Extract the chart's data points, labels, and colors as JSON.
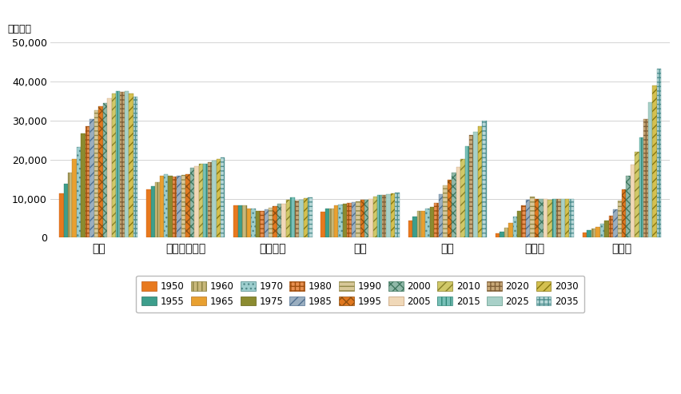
{
  "cities": [
    "東京",
    "ニューヨーク",
    "ロンドン",
    "パリ",
    "上海",
    "ソウル",
    "デリー"
  ],
  "years": [
    1950,
    1955,
    1960,
    1965,
    1970,
    1975,
    1980,
    1985,
    1990,
    1995,
    2000,
    2005,
    2010,
    2015,
    2020,
    2025,
    2030,
    2035
  ],
  "values": {
    "東京": [
      11274,
      13750,
      16679,
      20234,
      23298,
      26615,
      28549,
      30300,
      32530,
      33587,
      34450,
      35622,
      36834,
      37468,
      37400,
      37468,
      36968,
      36022
    ],
    "ニューヨーク": [
      12338,
      13219,
      14164,
      15798,
      16191,
      15880,
      15601,
      15755,
      16087,
      16332,
      17813,
      18351,
      18897,
      18823,
      19216,
      19767,
      20091,
      20620
    ],
    "ロンドン": [
      8361,
      8247,
      8196,
      7518,
      7429,
      6910,
      6805,
      7150,
      7651,
      8089,
      8616,
      8607,
      9787,
      10228,
      9540,
      9800,
      10100,
      10230
    ],
    "パリ": [
      6700,
      7369,
      7490,
      8195,
      8535,
      8630,
      8823,
      9126,
      9319,
      9692,
      9736,
      9926,
      10620,
      10901,
      11017,
      11213,
      11418,
      11587
    ],
    "上海": [
      4301,
      5406,
      6900,
      6915,
      7547,
      7780,
      8930,
      11160,
      13452,
      14740,
      16738,
      18150,
      20218,
      23390,
      26317,
      27058,
      28516,
      29867
    ],
    "ソウル": [
      1021,
      1574,
      2445,
      3793,
      5310,
      6808,
      8364,
      9640,
      10520,
      9963,
      9895,
      9820,
      9796,
      9888,
      9963,
      9967,
      9961,
      9887
    ],
    "デリー": [
      1369,
      1849,
      2275,
      2782,
      3531,
      4426,
      5558,
      7206,
      9421,
      12441,
      15925,
      18681,
      21935,
      25735,
      30291,
      34700,
      38939,
      43300
    ]
  },
  "year_styles": {
    "1950": {
      "color": "#E8791E",
      "hatch": "",
      "edgecolor": "#c05810"
    },
    "1955": {
      "color": "#3D9E8C",
      "hatch": "",
      "edgecolor": "#2a7060"
    },
    "1960": {
      "color": "#C8B87A",
      "hatch": "|||",
      "edgecolor": "#888040"
    },
    "1965": {
      "color": "#E8A030",
      "hatch": "===",
      "edgecolor": "#B07020"
    },
    "1970": {
      "color": "#9ECECE",
      "hatch": "...",
      "edgecolor": "#508888"
    },
    "1975": {
      "color": "#8B8B30",
      "hatch": "",
      "edgecolor": "#606010"
    },
    "1980": {
      "color": "#E89050",
      "hatch": "+++",
      "edgecolor": "#A05010"
    },
    "1985": {
      "color": "#9AAEC0",
      "hatch": "///",
      "edgecolor": "#507090"
    },
    "1990": {
      "color": "#D8C898",
      "hatch": "---",
      "edgecolor": "#908848"
    },
    "1995": {
      "color": "#E07820",
      "hatch": "xxx",
      "edgecolor": "#905010"
    },
    "2000": {
      "color": "#90B8A8",
      "hatch": "xxx",
      "edgecolor": "#407860"
    },
    "2005": {
      "color": "#F0D8B8",
      "hatch": "",
      "edgecolor": "#C09870"
    },
    "2010": {
      "color": "#D0C868",
      "hatch": "///",
      "edgecolor": "#888028"
    },
    "2015": {
      "color": "#78C0B8",
      "hatch": "|||",
      "edgecolor": "#308878"
    },
    "2020": {
      "color": "#C8A878",
      "hatch": "+++",
      "edgecolor": "#806038"
    },
    "2025": {
      "color": "#A8D0C8",
      "hatch": "",
      "edgecolor": "#609888"
    },
    "2030": {
      "color": "#D4C050",
      "hatch": "///",
      "edgecolor": "#887810"
    },
    "2035": {
      "color": "#B8D8D8",
      "hatch": "+++",
      "edgecolor": "#509090"
    }
  },
  "ylabel": "（千人）",
  "ylim": [
    0,
    50000
  ],
  "yticks": [
    0,
    10000,
    20000,
    30000,
    40000,
    50000
  ],
  "background_color": "#ffffff",
  "grid_color": "#cccccc"
}
